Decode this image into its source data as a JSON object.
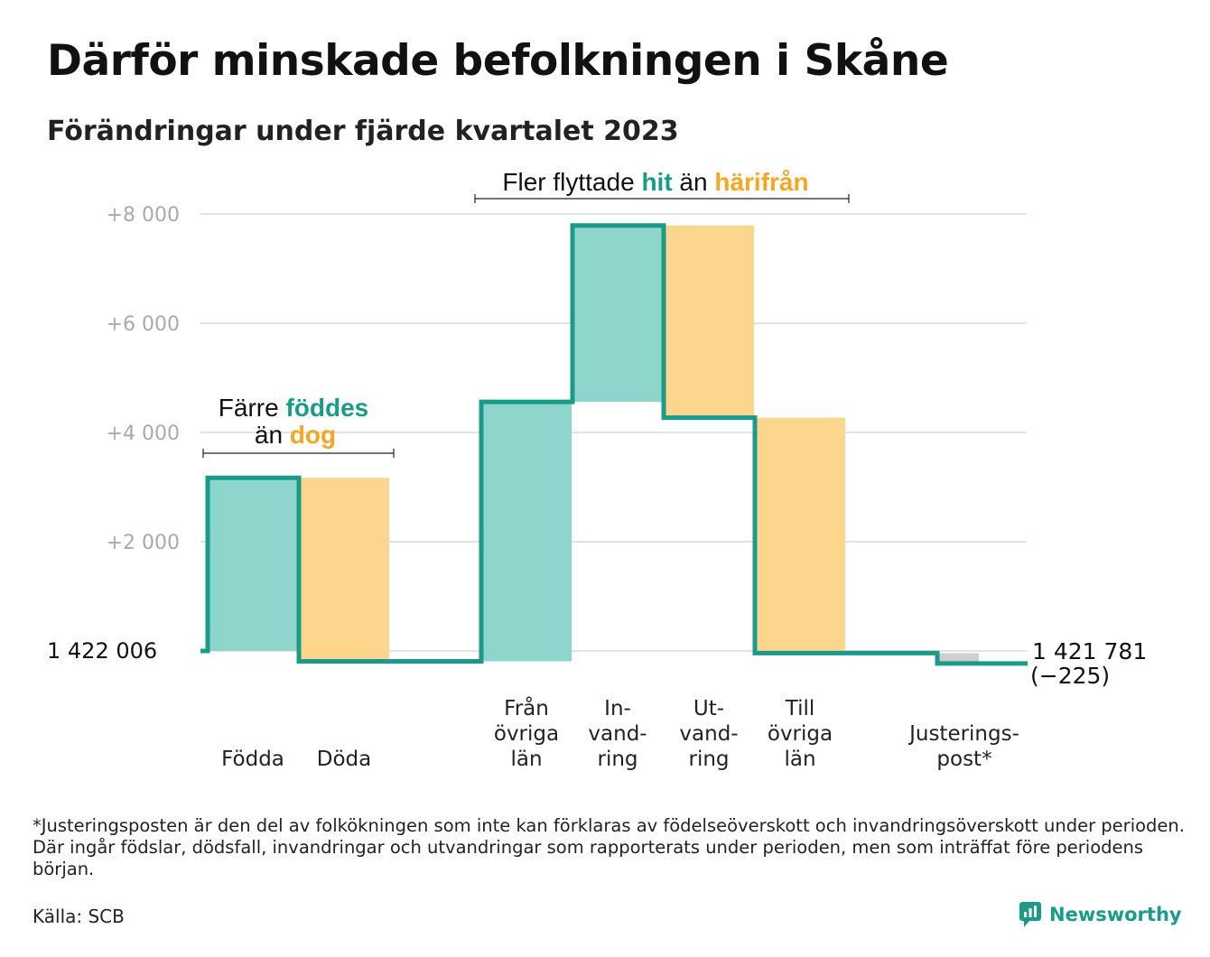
{
  "title": "Därför minskade befolkningen i Skåne",
  "subtitle": "Förändringar under fjärde kvartalet 2023",
  "colors": {
    "inflow": "#8ed5cc",
    "outflow": "#fbd68c",
    "adjustment": "#cfcfcf",
    "line": "#1a9b8a",
    "grid": "#e2e2e2",
    "tick": "#aaaaaa",
    "teal_text": "#1a9b8a",
    "orange_text": "#f5a623"
  },
  "chart_data": {
    "type": "bar",
    "subtype": "waterfall",
    "start_label": "1  422   006",
    "start_value": 1422006,
    "end_label": "1 421 781",
    "end_change": "(−225)",
    "end_value": 1421781,
    "yticks": [
      "+2   000",
      "+4   000",
      "+6   000",
      "+8   000"
    ],
    "ytick_values": [
      2000,
      4000,
      6000,
      8000
    ],
    "ylim": [
      -400,
      8400
    ],
    "grid": true,
    "bars": [
      {
        "label": [
          "Födda"
        ],
        "delta": 3170,
        "kind": "inflow"
      },
      {
        "label": [
          "Döda"
        ],
        "delta": -3360,
        "kind": "outflow"
      },
      {
        "label": [
          "Från",
          "övriga",
          "län"
        ],
        "delta": 4750,
        "kind": "inflow"
      },
      {
        "label": [
          "In-",
          "vand-",
          "ring"
        ],
        "delta": 3230,
        "kind": "inflow"
      },
      {
        "label": [
          "Ut-",
          "vand-",
          "ring"
        ],
        "delta": -3520,
        "kind": "outflow"
      },
      {
        "label": [
          "Till",
          "övriga",
          "län"
        ],
        "delta": -4310,
        "kind": "outflow"
      },
      {
        "label": [
          "Justerings-",
          "post*"
        ],
        "delta": -190,
        "kind": "adjustment"
      }
    ],
    "annotations": [
      {
        "parts": [
          [
            "Färre ",
            "plain"
          ],
          [
            "föddes",
            "teal"
          ]
        ],
        "parts2": [
          [
            "än ",
            "plain"
          ],
          [
            "dog",
            "orange"
          ]
        ],
        "span": [
          0,
          1
        ]
      },
      {
        "parts": [
          [
            "Fler flyttade ",
            "plain"
          ],
          [
            "hit",
            "teal"
          ],
          [
            " än ",
            "plain"
          ],
          [
            "härifrån",
            "orange"
          ]
        ],
        "span": [
          2,
          5
        ]
      }
    ]
  },
  "footnote": "*Justeringsposten är den del av folkökningen som inte kan förklaras av födelseöverskott och invandringsöverskott under perioden. Där ingår födslar, dödsfall, invandringar och utvandringar som rapporterats under perioden, men som inträffat före periodens början.",
  "source": "Källa: SCB",
  "brand": "Newsworthy"
}
